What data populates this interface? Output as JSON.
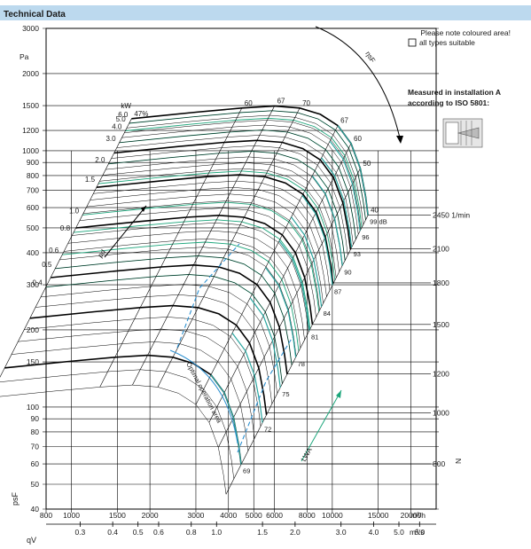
{
  "header": {
    "title": "Technical Data",
    "bg": "#bcd9ee"
  },
  "notes": {
    "coloured_area": "Please note coloured area!",
    "legend_box_label": "all types suitable",
    "measured_line1": "Measured in installation A",
    "measured_line2": "according to ISO 5801:"
  },
  "colors": {
    "grid": "#000000",
    "green": "#1aa57a",
    "blue": "#2b8fd0",
    "teal": "#2aa6a0"
  },
  "chart_data": {
    "type": "line",
    "x_scale": "log",
    "y_scale": "log",
    "xlabel": "qV",
    "ylabel": "psF",
    "y_unit": "Pa",
    "y_ticks": [
      40,
      50,
      60,
      70,
      80,
      90,
      100,
      150,
      200,
      300,
      400,
      500,
      600,
      700,
      800,
      900,
      1000,
      1200,
      1500,
      2000,
      3000
    ],
    "y_ticks_labels": [
      "40",
      "50",
      "60",
      "70",
      "80",
      "90",
      "100",
      "150",
      "200",
      "300",
      "400",
      "500",
      "600",
      "700",
      "800",
      "900",
      "1000",
      "1200",
      "1500",
      "2000",
      "3000"
    ],
    "x_ticks_m3h": [
      800,
      1000,
      1500,
      2000,
      3000,
      4000,
      5000,
      6000,
      8000,
      10000,
      15000,
      20000
    ],
    "x_ticks_m3h_labels": [
      "800",
      "1000",
      "1500",
      "2000",
      "3000",
      "4000",
      "5000",
      "6000",
      "8000",
      "10000",
      "15000",
      "20000"
    ],
    "x_unit_m3h": "m³/h",
    "x_ticks_m3s": [
      0.3,
      0.4,
      0.5,
      0.6,
      0.8,
      1.0,
      1.5,
      2.0,
      3.0,
      4.0,
      5.0,
      6.0
    ],
    "x_ticks_m3s_labels": [
      "0.3",
      "0.4",
      "0.5",
      "0.6",
      "0.8",
      "1.0",
      "1.5",
      "2.0",
      "3.0",
      "4.0",
      "5.0",
      "6.0"
    ],
    "x_unit_m3s": "m³/s",
    "xlim_m3h": [
      800,
      25000
    ],
    "ylim": [
      40,
      3000
    ],
    "speed_axis": {
      "label": "N",
      "unit": "1/min",
      "speeds": [
        800,
        1000,
        1200,
        1500,
        1800,
        2100,
        2450
      ],
      "labels": [
        "800",
        "1000",
        "1200",
        "1500",
        "1800",
        "2100",
        "2450 1/min"
      ],
      "pressure_at": [
        60,
        95,
        135,
        210,
        305,
        415,
        560
      ]
    },
    "speed_curves": {
      "pressure_mult": [
        1.0,
        1.06,
        1.1,
        1.12,
        1.1,
        1.04,
        0.94,
        0.8,
        0.64,
        0.5,
        0.42
      ],
      "flow_at_2450": [
        1700,
        3000,
        4500,
        6000,
        7500,
        9000,
        10500,
        11800,
        12800,
        13400,
        13700
      ]
    },
    "power_axis": {
      "unit": "kW",
      "labels": [
        "0.4",
        "0.5",
        "0.6",
        "0.8",
        "1.0",
        "1.5",
        "2.0",
        "3.0",
        "4.0",
        "5.0",
        "6.0"
      ],
      "speeds": [
        1150,
        1250,
        1330,
        1470,
        1590,
        1830,
        2000,
        2200,
        2320,
        2400,
        2450
      ]
    },
    "efficiency": {
      "unit": "%",
      "labels": [
        "47",
        "60",
        "67",
        "70",
        "67",
        "60",
        "50",
        "40"
      ],
      "sym_label": "ηsF"
    },
    "noise": {
      "unit": "dB",
      "labels": [
        "69",
        "72",
        "75",
        "78",
        "81",
        "84",
        "87",
        "90",
        "93",
        "96",
        "99"
      ],
      "sym_label": "LWA"
    },
    "pd_label": "pd",
    "optimal_area_label": "Optimal operation area"
  }
}
